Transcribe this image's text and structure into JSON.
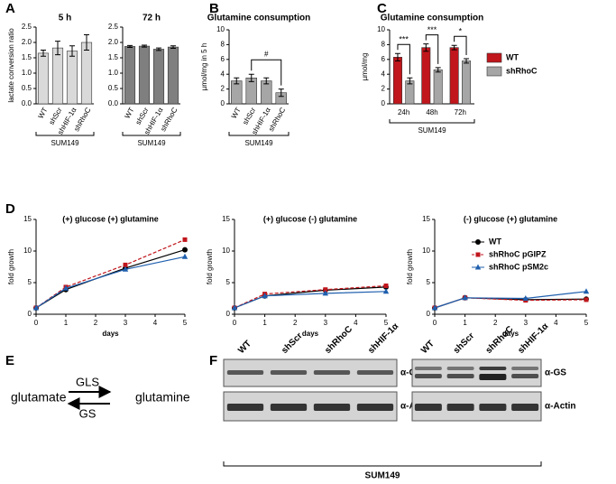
{
  "panel_labels": [
    "A",
    "B",
    "C",
    "D",
    "E",
    "F"
  ],
  "chart_data": [
    {
      "type": "bar",
      "title": "5 h",
      "y_label": "lactate conversion ratio",
      "categories": [
        "WT",
        "shScr",
        "shHIF-1α",
        "shRhoC"
      ],
      "values": [
        1.65,
        1.82,
        1.72,
        2.0
      ],
      "errors": [
        0.1,
        0.22,
        0.17,
        0.25
      ],
      "color": "#d9d9d9",
      "ylim": [
        0,
        2.5
      ],
      "yticks": [
        {
          "value": 0,
          "label": "0.0"
        },
        {
          "value": 0.5,
          "label": "0.5"
        },
        {
          "value": 1,
          "label": "1.0"
        },
        {
          "value": 1.5,
          "label": "1.5"
        },
        {
          "value": 2,
          "label": "2.0"
        },
        {
          "value": 2.5,
          "label": "2.5"
        }
      ],
      "group_label": "SUM149"
    },
    {
      "type": "bar",
      "title": "72 h",
      "categories": [
        "WT",
        "shScr",
        "shHIF-1α",
        "shRhoC"
      ],
      "values": [
        1.87,
        1.88,
        1.78,
        1.85
      ],
      "errors": [
        0.03,
        0.03,
        0.04,
        0.04
      ],
      "color": "#7f7f7f",
      "ylim": [
        0,
        2.5
      ],
      "yticks": [
        {
          "value": 0,
          "label": "0.0"
        },
        {
          "value": 0.5,
          "label": "0.5"
        },
        {
          "value": 1,
          "label": "1.0"
        },
        {
          "value": 1.5,
          "label": "1.5"
        },
        {
          "value": 2,
          "label": "2.0"
        },
        {
          "value": 2.5,
          "label": "2.5"
        }
      ],
      "group_label": "SUM149"
    },
    {
      "type": "bar",
      "title": "Glutamine consumption",
      "y_label": "µmol/mg in 5 h",
      "categories": [
        "WT",
        "shScr",
        "shHIF-1α",
        "shRhoC"
      ],
      "values": [
        3.1,
        3.5,
        3.1,
        1.5
      ],
      "errors": [
        0.4,
        0.5,
        0.4,
        0.5
      ],
      "color": "#a6a6a6",
      "ylim": [
        0,
        10
      ],
      "yticks": [
        0,
        2,
        4,
        6,
        8,
        10
      ],
      "annotations": [
        "#"
      ],
      "group_label": "SUM149"
    },
    {
      "type": "grouped_bar",
      "title": "Glutamine consumption",
      "y_label": "µmol/mg",
      "categories": [
        "24h",
        "48h",
        "72h"
      ],
      "series": [
        {
          "name": "WT",
          "color": "#c0161c",
          "values": [
            6.3,
            7.6,
            7.6
          ],
          "errors": [
            0.5,
            0.5,
            0.3
          ]
        },
        {
          "name": "shRhoC",
          "color": "#a6a6a6",
          "values": [
            3.1,
            4.6,
            5.8
          ],
          "errors": [
            0.4,
            0.3,
            0.3
          ]
        }
      ],
      "ylim": [
        0,
        10
      ],
      "yticks": [
        0,
        2,
        4,
        6,
        8,
        10
      ],
      "annotations": [
        "***",
        "***",
        "*"
      ],
      "legend": "right",
      "group_label": "SUM149"
    },
    {
      "type": "line",
      "title": "(+) glucose  (+) glutamine",
      "y_label": "fold growth",
      "x_label": "days",
      "x": [
        0,
        1,
        3,
        5
      ],
      "xlim": [
        0,
        5
      ],
      "xticks": [
        0,
        1,
        2,
        3,
        4,
        5
      ],
      "ylim": [
        0,
        15
      ],
      "yticks": [
        0,
        5,
        10,
        15
      ],
      "series": [
        {
          "color": "#000000",
          "marker": "circle",
          "values": [
            1,
            3.9,
            7.3,
            10.2
          ]
        },
        {
          "color": "#c0161c",
          "marker": "square",
          "dashed": true,
          "values": [
            1,
            4.3,
            7.8,
            11.8
          ]
        },
        {
          "color": "#1f5fae",
          "marker": "triangle",
          "values": [
            1,
            4.1,
            7.1,
            9.1
          ]
        }
      ]
    },
    {
      "type": "line",
      "title": "(+) glucose  (-) glutamine",
      "y_label": "fold growth",
      "x_label": "days",
      "x": [
        0,
        1,
        3,
        5
      ],
      "xlim": [
        0,
        5
      ],
      "xticks": [
        0,
        1,
        2,
        3,
        4,
        5
      ],
      "ylim": [
        0,
        15
      ],
      "yticks": [
        0,
        5,
        10,
        15
      ],
      "series": [
        {
          "color": "#000000",
          "marker": "circle",
          "values": [
            1,
            2.9,
            3.8,
            4.3
          ]
        },
        {
          "color": "#c0161c",
          "marker": "square",
          "dashed": true,
          "values": [
            1,
            3.2,
            3.9,
            4.5
          ]
        },
        {
          "color": "#1f5fae",
          "marker": "triangle",
          "values": [
            1,
            2.9,
            3.3,
            3.6
          ]
        }
      ]
    },
    {
      "type": "line",
      "title": "(-) glucose  (+) glutamine",
      "y_label": "fold growth",
      "x_label": "days",
      "x": [
        0,
        1,
        3,
        5
      ],
      "xlim": [
        0,
        5
      ],
      "xticks": [
        0,
        1,
        2,
        3,
        4,
        5
      ],
      "ylim": [
        0,
        15
      ],
      "yticks": [
        0,
        5,
        10,
        15
      ],
      "legend": "upper right",
      "series": [
        {
          "name": "WT",
          "color": "#000000",
          "marker": "circle",
          "values": [
            1,
            2.6,
            2.3,
            2.4
          ]
        },
        {
          "name": "shRhoC pGIPZ",
          "color": "#c0161c",
          "marker": "square",
          "dashed": true,
          "values": [
            1,
            2.6,
            2.2,
            2.3
          ]
        },
        {
          "name": "shRhoC pSM2c",
          "color": "#1f5fae",
          "marker": "triangle",
          "values": [
            1,
            2.6,
            2.5,
            3.6
          ]
        }
      ]
    }
  ],
  "diagram": {
    "left": "glutamate",
    "right": "glutamine",
    "forward": "GLS",
    "reverse": "GS"
  },
  "blot": {
    "panels": [
      {
        "lanes": [
          "WT",
          "shScr",
          "shRhoC",
          "shHIF-1α"
        ],
        "rows": [
          "α-GLS1",
          "α-Actin"
        ]
      },
      {
        "lanes": [
          "WT",
          "shScr",
          "shRhoC",
          "shHIF-1α"
        ],
        "rows": [
          "α-GS",
          "α-Actin"
        ]
      }
    ],
    "group": "SUM149"
  }
}
